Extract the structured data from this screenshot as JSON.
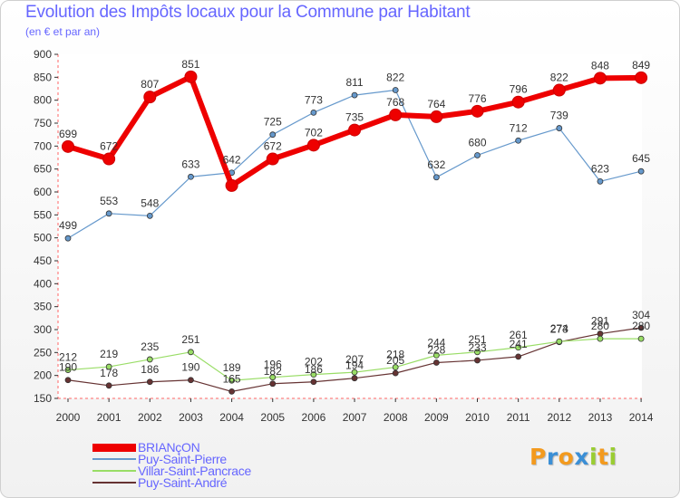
{
  "title": "Evolution des Impôts locaux pour la Commune par Habitant",
  "subtitle": "(en € et par an)",
  "logo": {
    "letters": [
      "P",
      "r",
      "o",
      "x",
      "i",
      "t",
      "i"
    ],
    "colors": [
      "#f39a1e",
      "#3b8fd6",
      "#f39a1e",
      "#3b8fd6",
      "#9acd32",
      "#f39a1e",
      "#9acd32"
    ]
  },
  "chart_data": {
    "type": "line",
    "title": "Evolution des Impôts locaux pour la Commune par Habitant",
    "ylabel": "(en € et par an)",
    "x": [
      "2000",
      "2001",
      "2002",
      "2003",
      "2004",
      "2005",
      "2006",
      "2007",
      "2008",
      "2009",
      "2010",
      "2011",
      "2012",
      "2013",
      "2014"
    ],
    "ylim": [
      150,
      900
    ],
    "yticks": [
      "150",
      "200",
      "250",
      "300",
      "350",
      "400",
      "450",
      "500",
      "550",
      "600",
      "650",
      "700",
      "750",
      "800",
      "850",
      "900"
    ],
    "series": [
      {
        "name": "BRIANçON",
        "color": "#ee0000",
        "width": 6,
        "values": [
          699,
          672,
          807,
          851,
          614,
          672,
          702,
          735,
          768,
          764,
          776,
          796,
          822,
          848,
          849
        ],
        "labels": [
          "699",
          "672",
          "807",
          "851",
          "",
          "672",
          "702",
          "735",
          "768",
          "764",
          "776",
          "796",
          "822",
          "848",
          "849"
        ]
      },
      {
        "name": "Puy-Saint-Pierre",
        "color": "#6699cc",
        "width": 1.2,
        "values": [
          499,
          553,
          548,
          633,
          642,
          725,
          773,
          811,
          822,
          632,
          680,
          712,
          739,
          623,
          645
        ],
        "labels": [
          "499",
          "553",
          "548",
          "633",
          "642",
          "725",
          "773",
          "811",
          "822",
          "632",
          "680",
          "712",
          "739",
          "623",
          "645"
        ]
      },
      {
        "name": "Villar-Saint-Pancrace",
        "color": "#99dd66",
        "width": 1.2,
        "values": [
          212,
          219,
          235,
          251,
          189,
          196,
          202,
          207,
          218,
          244,
          251,
          261,
          274,
          280,
          280
        ],
        "labels": [
          "212",
          "219",
          "235",
          "251",
          "189",
          "196",
          "202",
          "207",
          "218",
          "244",
          "251",
          "261",
          "274",
          "280",
          "280"
        ]
      },
      {
        "name": "Puy-Saint-André",
        "color": "#663333",
        "width": 1.2,
        "values": [
          190,
          178,
          186,
          190,
          165,
          182,
          186,
          194,
          205,
          228,
          233,
          241,
          273,
          291,
          304
        ],
        "labels": [
          "190",
          "178",
          "186",
          "190",
          "165",
          "182",
          "186",
          "194",
          "205",
          "228",
          "233",
          "241",
          "273",
          "291",
          "304"
        ]
      }
    ],
    "grid": false,
    "legend": "bottom-left"
  }
}
